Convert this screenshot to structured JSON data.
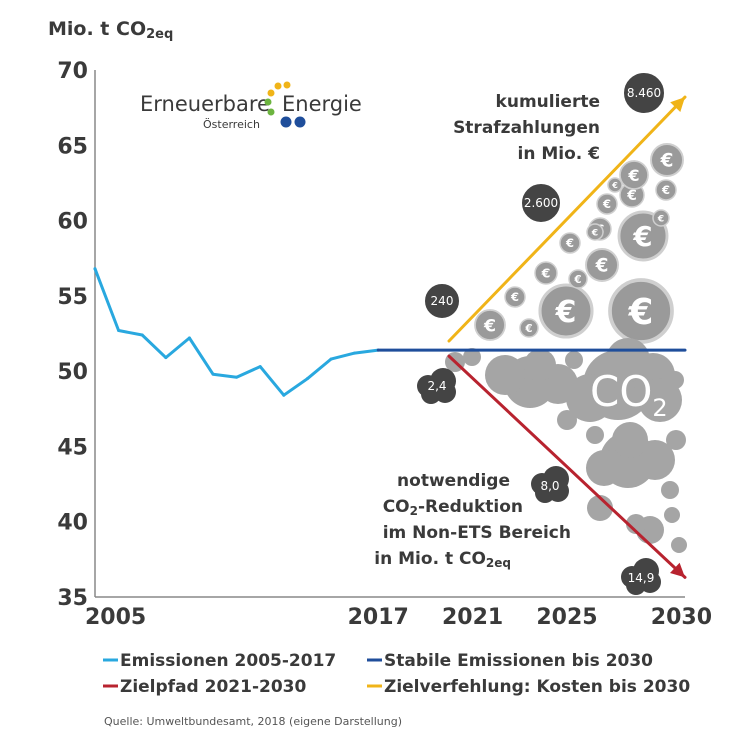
{
  "chart_data": {
    "type": "line",
    "ylabel_main": "Mio. t CO",
    "ylabel_sub": "2eq",
    "ylim": [
      35,
      70
    ],
    "yticks": [
      35,
      40,
      45,
      50,
      55,
      60,
      65,
      70
    ],
    "xlim": [
      2005,
      2030
    ],
    "xticks": [
      "2005",
      "2017",
      "2021",
      "2025",
      "2030"
    ],
    "xtick_values": [
      2005,
      2017,
      2021,
      2025,
      2030
    ],
    "grid": false,
    "legend_position": "bottom",
    "series": [
      {
        "name": "Emissionen 2005-2017",
        "color": "#29a8df",
        "x": [
          2005,
          2006,
          2007,
          2008,
          2009,
          2010,
          2011,
          2012,
          2013,
          2014,
          2015,
          2016,
          2017
        ],
        "values": [
          56.8,
          52.7,
          52.4,
          50.9,
          52.2,
          49.8,
          49.6,
          50.3,
          48.4,
          49.5,
          50.8,
          51.2,
          51.4
        ]
      },
      {
        "name": "Stabile Emissionen bis 2030",
        "color": "#1f4e9b",
        "x": [
          2017,
          2030
        ],
        "values": [
          51.4,
          51.4
        ]
      },
      {
        "name": "Zielpfad 2021-2030",
        "color": "#b8232f",
        "x": [
          2020,
          2030
        ],
        "values": [
          51.0,
          36.3
        ]
      },
      {
        "name": "Zielverfehlung: Kosten bis 2030",
        "color": "#f0b418",
        "x": [
          2020,
          2030
        ],
        "values": [
          52.0,
          68.2
        ]
      }
    ],
    "annotations": {
      "penalty_title": [
        "kumulierte",
        "Strafzahlungen",
        "in Mio. €"
      ],
      "penalty_values": [
        "240",
        "2.600",
        "8.460"
      ],
      "reduction_title_1": "notwendige",
      "reduction_title_2_main": "CO",
      "reduction_title_2_sub": "2",
      "reduction_title_2_rest": "-Reduktion",
      "reduction_title_3": "im Non-ETS Bereich",
      "reduction_title_4_main": "in Mio. t CO",
      "reduction_title_4_sub": "2eq",
      "reduction_values": [
        "2,4",
        "8,0",
        "14,9"
      ],
      "cloud_label_main": "CO",
      "cloud_label_sub": "2",
      "coin_symbol": "€"
    }
  },
  "logo": {
    "name": "Erneuerbare",
    "name2": "Energie",
    "subtitle": "Österreich",
    "colors": [
      "#f0b418",
      "#6cb43f",
      "#1f4e9b"
    ]
  },
  "source": "Quelle: Umweltbundesamt, 2018 (eigene Darstellung)",
  "colors": {
    "text": "#3a3a3a",
    "axis": "#888888",
    "badge": "#444444",
    "coin": "#9a9a9a",
    "cloud": "#a5a5a5"
  }
}
